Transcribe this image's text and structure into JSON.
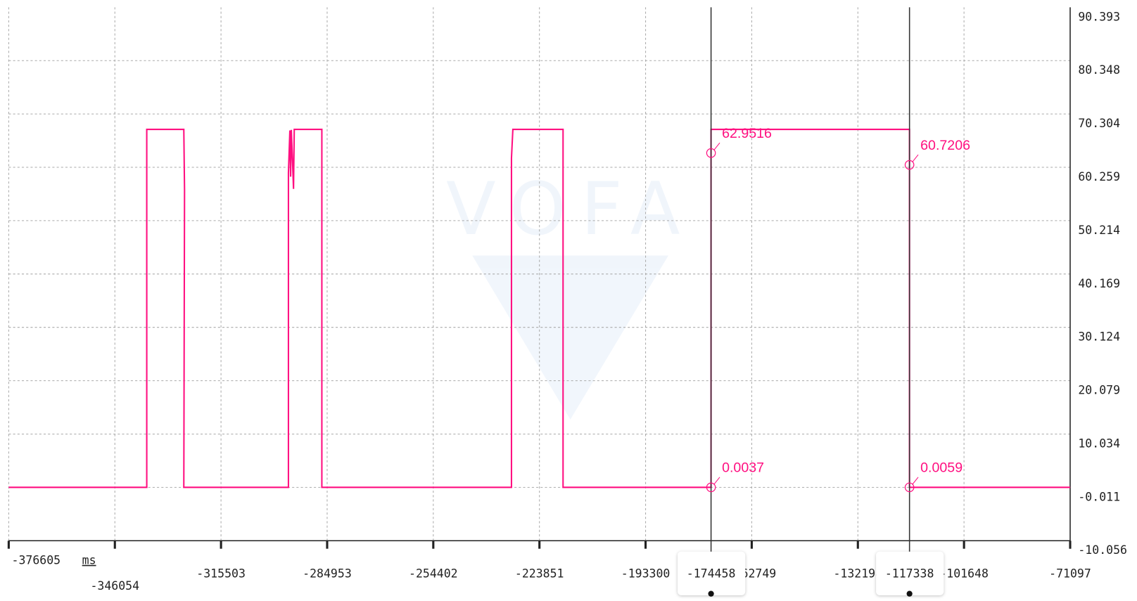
{
  "chart_data": {
    "type": "line",
    "watermark": "VOFA",
    "x_unit": "ms",
    "xlim": [
      -376605,
      -71097
    ],
    "xticks": [
      -376605,
      -346054,
      -315503,
      -284953,
      -254402,
      -223851,
      -193300,
      -162749,
      -132198,
      -101648,
      -71097
    ],
    "ylim": [
      -10.056,
      90.393
    ],
    "yticks": [
      90.393,
      80.348,
      70.304,
      60.259,
      50.214,
      40.169,
      30.124,
      20.079,
      10.034,
      -0.011,
      -10.056
    ],
    "grid": true,
    "series": [
      {
        "color": "#ff0f80",
        "x": [
          -376605,
          -336874,
          -336874,
          -326209,
          -326000,
          -326209,
          -296098,
          -296098,
          -295680,
          -295470,
          -295260,
          -294630,
          -294420,
          -294000,
          -286479,
          -286479,
          -231901,
          -231901,
          -231500,
          -217054,
          -217054,
          -174458,
          -174458,
          -117338,
          -117338,
          -71097
        ],
        "values": [
          0,
          0,
          67.4,
          67.4,
          56,
          0,
          0,
          59.2,
          67.2,
          58.5,
          67.3,
          56.2,
          67.4,
          67.4,
          67.4,
          0,
          0,
          62,
          67.4,
          67.4,
          0,
          0,
          67.4,
          67.4,
          0,
          0
        ]
      }
    ],
    "cursors": [
      {
        "x": -174458,
        "values": [
          62.9516,
          0.0037
        ]
      },
      {
        "x": -117338,
        "values": [
          60.7206,
          0.0059
        ]
      }
    ]
  }
}
